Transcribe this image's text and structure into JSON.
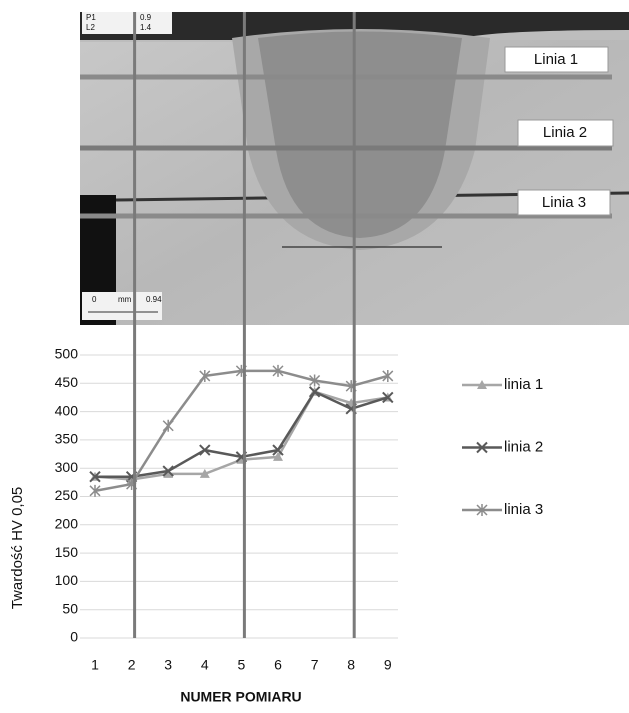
{
  "micrograph": {
    "corner_labels": [
      "P1",
      "0.9",
      "L2",
      "1.4"
    ],
    "scale_labels": [
      "0",
      "mm",
      "0.94"
    ],
    "line_labels": [
      "Linia 1",
      "Linia 2",
      "Linia 3"
    ]
  },
  "chart_data": {
    "type": "line",
    "y_label": "Twardość HV 0,05",
    "x_label": "NUMER POMIARU",
    "categories": [
      "1",
      "2",
      "3",
      "4",
      "5",
      "6",
      "7",
      "8",
      "9"
    ],
    "series": [
      {
        "name": "linia 1",
        "color": "#a6a6a6",
        "marker": "triangle",
        "values": [
          285,
          280,
          290,
          290,
          315,
          320,
          435,
          415,
          425
        ]
      },
      {
        "name": "linia 2",
        "color": "#595959",
        "marker": "x",
        "values": [
          285,
          285,
          295,
          332,
          320,
          332,
          435,
          405,
          425
        ]
      },
      {
        "name": "linia 3",
        "color": "#8c8c8c",
        "marker": "star",
        "values": [
          260,
          272,
          375,
          463,
          472,
          472,
          455,
          445,
          463
        ]
      }
    ],
    "ylim": [
      0,
      500
    ],
    "yticks": [
      0,
      50,
      100,
      150,
      200,
      250,
      300,
      350,
      400,
      450,
      500
    ],
    "grid": true,
    "legend": "right"
  }
}
